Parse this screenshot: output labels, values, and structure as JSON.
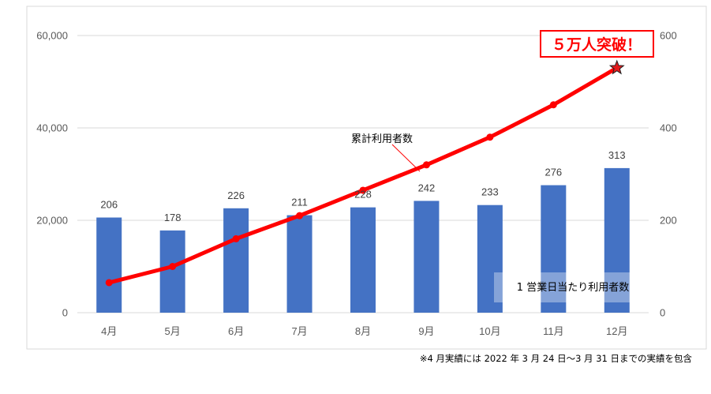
{
  "chart_data": {
    "type": "bar+line",
    "categories": [
      "4月",
      "5月",
      "6月",
      "7月",
      "8月",
      "9月",
      "10月",
      "11月",
      "12月"
    ],
    "series": [
      {
        "name": "1営業日当たり利用者数",
        "type": "bar",
        "axis": "right",
        "values": [
          206,
          178,
          226,
          211,
          228,
          242,
          233,
          276,
          313
        ]
      },
      {
        "name": "累計利用者数",
        "type": "line",
        "axis": "left",
        "values": [
          6500,
          10000,
          16000,
          21000,
          26500,
          32000,
          38000,
          45000,
          53000
        ]
      }
    ],
    "y_left": {
      "ticks": [
        "0",
        "20,000",
        "40,000",
        "60,000"
      ],
      "range": [
        0,
        60000
      ]
    },
    "y_right": {
      "ticks": [
        "0",
        "200",
        "400",
        "600"
      ],
      "range": [
        0,
        600
      ]
    },
    "grid": true,
    "colors": {
      "bar": "#4472c4",
      "line": "#ff0000",
      "grid": "#d9d9d9",
      "callout": "#ff0000"
    },
    "annotations": {
      "line_label": "累計利用者数",
      "bar_label": "1 営業日当たり利用者数",
      "callout": "５万人突破！",
      "marker_icon": "star-icon"
    },
    "footnote": "※4 月実績には 2022 年 3 月 24 日〜3 月 31 日までの実績を包含"
  }
}
